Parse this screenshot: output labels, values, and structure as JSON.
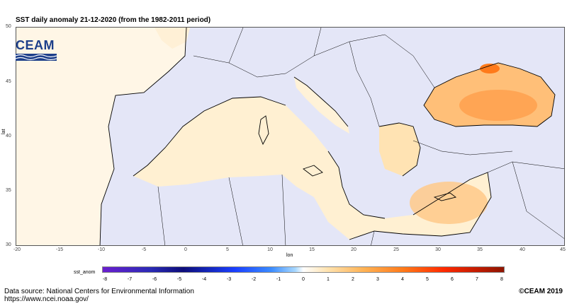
{
  "title": "SST daily anomaly 21-12-2020 (from the 1982-2011 period)",
  "logo_text": "CEAM",
  "axes": {
    "x_label": "lon",
    "y_label": "lat",
    "x_ticks": [
      "-20",
      "-15",
      "-10",
      "-5",
      "0",
      "5",
      "10",
      "15",
      "20",
      "25",
      "30",
      "35",
      "40",
      "45"
    ],
    "y_ticks": [
      "50",
      "45",
      "40",
      "35",
      "30"
    ]
  },
  "colorbar": {
    "label": "sst_anom",
    "ticks": [
      "-8",
      "-7",
      "-6",
      "-5",
      "-4",
      "-3",
      "-2",
      "-1",
      "0",
      "1",
      "2",
      "3",
      "4",
      "5",
      "6",
      "7",
      "8"
    ],
    "colors": [
      "#6a1ecf",
      "#0d0d7a",
      "#1a3fff",
      "#a8d8ff",
      "#ffffff",
      "#ffb355",
      "#ff2a00",
      "#8e1500"
    ]
  },
  "source_line1": "Data source: National Centers for Environmental Information",
  "source_line2": "https://www.ncei.noaa.gov/",
  "copyright": "©CEAM 2019"
}
